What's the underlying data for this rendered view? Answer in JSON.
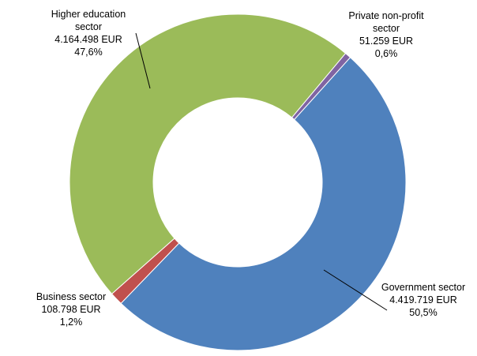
{
  "chart_data": {
    "type": "donut",
    "categories": [
      "Government sector",
      "Business sector",
      "Higher education sector",
      "Private non-profit sector"
    ],
    "values": [
      4419719,
      108798,
      4164498,
      51259
    ],
    "value_labels": [
      "4.419.719 EUR",
      "108.798 EUR",
      "4.164.498 EUR",
      "51.259 EUR"
    ],
    "shares": [
      50.5,
      1.2,
      47.6,
      0.6
    ],
    "share_labels": [
      "50,5%",
      "1,2%",
      "47,6%",
      "0,6%"
    ],
    "colors": [
      "#4f81bd",
      "#c0504d",
      "#9bbb59",
      "#8064a2"
    ]
  }
}
